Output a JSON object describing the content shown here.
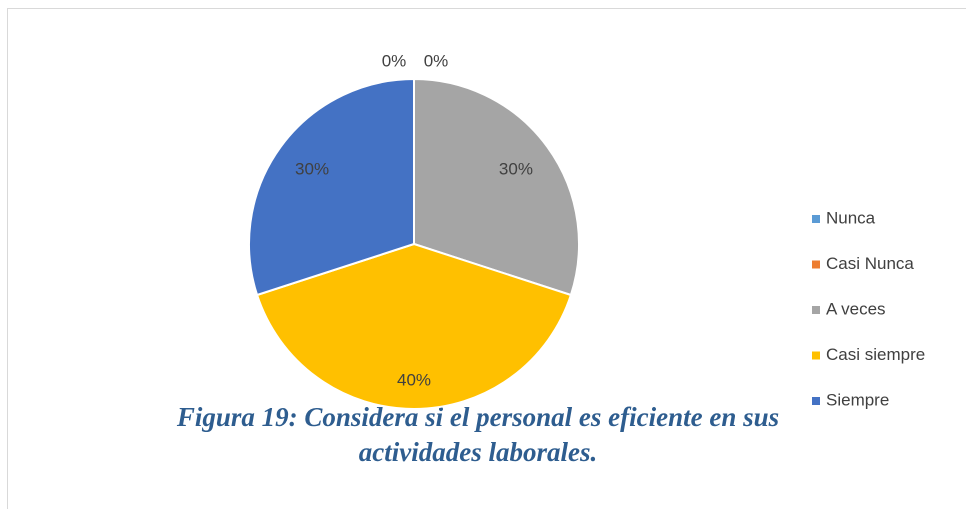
{
  "chart_data": {
    "type": "pie",
    "categories": [
      "Nunca",
      "Casi Nunca",
      "A veces",
      "Casi siempre",
      "Siempre"
    ],
    "values": [
      0,
      0,
      30,
      40,
      30
    ],
    "value_labels": [
      "0%",
      "0%",
      "30%",
      "40%",
      "30%"
    ],
    "colors": [
      "#5b9bd5",
      "#ed7d31",
      "#a5a5a5",
      "#ffc000",
      "#4472c4"
    ],
    "legend": "right",
    "caption": [
      "Figura 19: Considera si el personal es eficiente en sus",
      "actividades laborales."
    ]
  }
}
